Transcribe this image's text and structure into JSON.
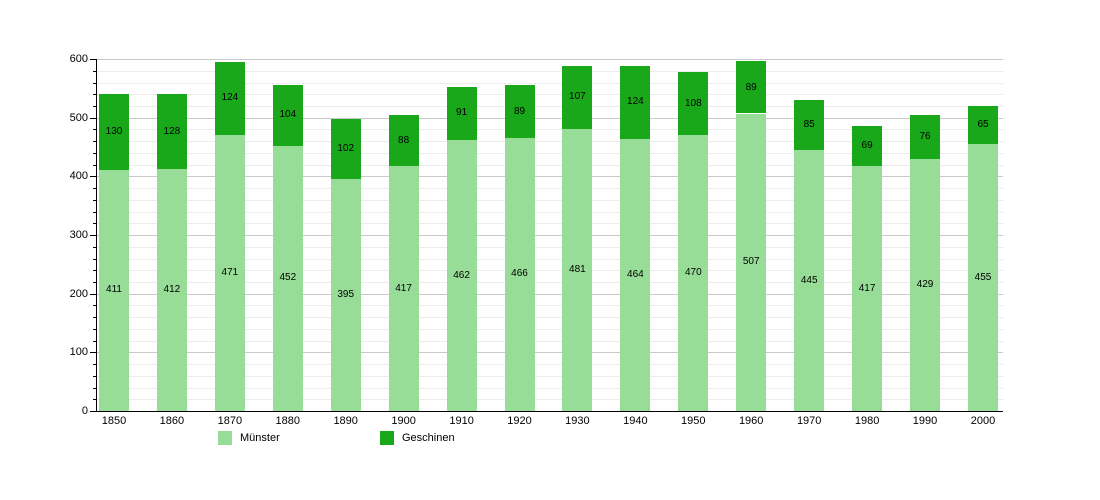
{
  "chart_data": {
    "type": "bar",
    "stacked": true,
    "title": "",
    "xlabel": "",
    "ylabel": "",
    "categories": [
      "1850",
      "1860",
      "1870",
      "1880",
      "1890",
      "1900",
      "1910",
      "1920",
      "1930",
      "1940",
      "1950",
      "1960",
      "1970",
      "1980",
      "1990",
      "2000"
    ],
    "series": [
      {
        "name": "Münster",
        "color": "#97DD97",
        "values": [
          411,
          412,
          471,
          452,
          395,
          417,
          462,
          466,
          481,
          464,
          470,
          507,
          445,
          417,
          429,
          455
        ]
      },
      {
        "name": "Geschinen",
        "color": "#19A819",
        "values": [
          130,
          128,
          124,
          104,
          102,
          88,
          91,
          89,
          107,
          124,
          108,
          89,
          85,
          69,
          76,
          65
        ]
      }
    ],
    "ylim": [
      0,
      600
    ],
    "y_ticks_major": [
      0,
      100,
      200,
      300,
      400,
      500,
      600
    ],
    "y_minor_step": 20,
    "grid": true,
    "legend_position": "bottom",
    "value_labels": "inside-center"
  },
  "legend": {
    "munster_label": "Münster",
    "geschinen_label": "Geschinen"
  }
}
